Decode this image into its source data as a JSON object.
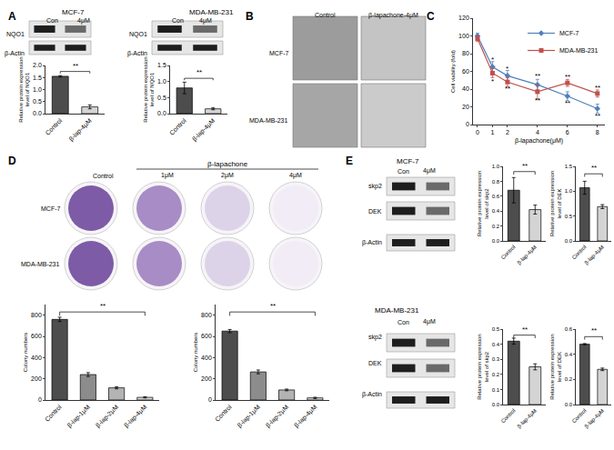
{
  "panel_labels": [
    "A",
    "B",
    "C",
    "D",
    "E"
  ],
  "blots": [
    {
      "title": "MCF-7",
      "lanes": [
        "Con",
        "4μM"
      ],
      "rows": [
        "NQO1",
        "β-Actin"
      ]
    },
    {
      "title": "MDA-MB-231",
      "lanes": [
        "Con",
        "4μM"
      ],
      "rows": [
        "NQO1",
        "β-Actin"
      ]
    },
    {
      "title": "MCF-7",
      "lanes": [
        "Con",
        "4μM"
      ],
      "rows": [
        "skp2",
        "DEK",
        "β-Actin"
      ]
    },
    {
      "title": "MDA-MB-231",
      "lanes": [
        "Con",
        "4μM"
      ],
      "rows": [
        "skp2",
        "DEK",
        "β-Actin"
      ]
    }
  ],
  "micrographs": {
    "columns": [
      "Control",
      "β-lapachone-4μM"
    ],
    "rows": [
      "MCF-7",
      "MDA-MB-231"
    ]
  },
  "colonies": {
    "group_label": "β-lapachone",
    "columns": [
      "Control",
      "1μM",
      "2μM",
      "4μM"
    ],
    "rows": [
      "MCF-7",
      "MDA-MB-231"
    ]
  },
  "chart_data": [
    {
      "type": "bar",
      "y_label": [
        "Relative protein expression",
        "level of NQO1"
      ],
      "categories": [
        "Control",
        "β-lap-4μM"
      ],
      "values": [
        1.55,
        0.28
      ],
      "errors": [
        0.03,
        0.08
      ],
      "colors": [
        "#4d4d4d",
        "#d4d4d4"
      ],
      "ylim": [
        0,
        2.0
      ],
      "yticks": [
        {
          "value": 0,
          "label": "0.0"
        },
        0.5,
        {
          "value": 1,
          "label": "1.0"
        },
        1.5,
        {
          "value": 2,
          "label": "2.0"
        }
      ],
      "annotations": [
        {
          "text": "**",
          "from": "Control",
          "to": "β-lap-4μM",
          "y": 1.75
        }
      ]
    },
    {
      "type": "bar",
      "y_label": [
        "Relative protein expression",
        "level of NQO1"
      ],
      "categories": [
        "Control",
        "β-lap-4μM"
      ],
      "values": [
        0.8,
        0.15
      ],
      "errors": [
        0.18,
        0.03
      ],
      "colors": [
        "#4d4d4d",
        "#d4d4d4"
      ],
      "ylim": [
        0,
        1.5
      ],
      "yticks": [
        {
          "value": 0,
          "label": "0.0"
        },
        0.5,
        {
          "value": 1,
          "label": "1.0"
        },
        1.5
      ],
      "annotations": [
        {
          "text": "**",
          "from": "Control",
          "to": "β-lap-4μM",
          "y": 1.1
        }
      ]
    },
    {
      "type": "line",
      "x_label": "β-lapachone(μM)",
      "y_label": "Cell viability (fold)",
      "x": [
        0,
        1,
        2,
        4,
        6,
        8
      ],
      "series": [
        {
          "name": "MCF-7",
          "color": "#4f81bd",
          "marker": "diamond",
          "values": [
            100,
            65,
            55,
            45,
            32,
            18
          ],
          "errors": [
            3,
            6,
            6,
            6,
            5,
            5
          ]
        },
        {
          "name": "MDA-MB-231",
          "color": "#c0504d",
          "marker": "square",
          "values": [
            97,
            58,
            48,
            37,
            47,
            35
          ],
          "errors": [
            3,
            5,
            5,
            8,
            4,
            4
          ]
        }
      ],
      "xlim": [
        -0.3,
        8.5
      ],
      "xticks": [
        0,
        1,
        2,
        4,
        6,
        8
      ],
      "ylim": [
        0,
        120
      ],
      "yticks": [
        0,
        20,
        40,
        60,
        80,
        100,
        120
      ],
      "legend": "top right",
      "annotations": [
        {
          "x": 1,
          "y": 73,
          "text": "*"
        },
        {
          "x": 1,
          "y": 49,
          "text": "*"
        },
        {
          "x": 2,
          "y": 63,
          "text": "*"
        },
        {
          "x": 2,
          "y": 41,
          "text": "**"
        },
        {
          "x": 4,
          "y": 55,
          "text": "**"
        },
        {
          "x": 4,
          "y": 27,
          "text": "**"
        },
        {
          "x": 6,
          "y": 54,
          "text": "**"
        },
        {
          "x": 6,
          "y": 24,
          "text": "**"
        },
        {
          "x": 8,
          "y": 42,
          "text": "**"
        },
        {
          "x": 8,
          "y": 10,
          "text": "**"
        }
      ]
    },
    {
      "type": "bar",
      "y_label": "Colony numbers",
      "categories": [
        "Control",
        "β-lap-1μM",
        "β-lap-2μM",
        "β-lap-4μM"
      ],
      "values": [
        760,
        240,
        115,
        25
      ],
      "errors": [
        20,
        18,
        10,
        6
      ],
      "colors": [
        "#4d4d4d",
        "#8c8c8c",
        "#b3b3b3",
        "#d9d9d9"
      ],
      "ylim": [
        0,
        900
      ],
      "yticks": [
        0,
        200,
        400,
        600,
        800
      ],
      "annotations": [
        {
          "text": "**",
          "from": "Control",
          "to": "β-lap-4μM",
          "y": 830
        }
      ]
    },
    {
      "type": "bar",
      "y_label": "Colony numbers",
      "categories": [
        "Control",
        "β-lap-1μM",
        "β-lap-2μM",
        "β-lap-4μM"
      ],
      "values": [
        650,
        265,
        95,
        20
      ],
      "errors": [
        15,
        18,
        8,
        6
      ],
      "colors": [
        "#4d4d4d",
        "#8c8c8c",
        "#b3b3b3",
        "#d9d9d9"
      ],
      "ylim": [
        0,
        900
      ],
      "yticks": [
        0,
        200,
        400,
        600,
        800
      ],
      "annotations": [
        {
          "text": "**",
          "from": "Control",
          "to": "β-lap-4μM",
          "y": 830
        }
      ]
    },
    {
      "type": "bar",
      "y_label": [
        "Relative protein expression",
        "level of skp2"
      ],
      "categories": [
        "Control",
        "β-lap-4μM"
      ],
      "values": [
        0.68,
        0.42
      ],
      "errors": [
        0.17,
        0.06
      ],
      "colors": [
        "#4d4d4d",
        "#d4d4d4"
      ],
      "ylim": [
        0,
        1.0
      ],
      "yticks": [
        {
          "value": 0,
          "label": "0.0"
        },
        0.2,
        0.4,
        0.6,
        0.8,
        {
          "value": 1,
          "label": "1.0"
        }
      ],
      "annotations": [
        {
          "text": "**",
          "from": "Control",
          "to": "β-lap-4μM",
          "y": 0.93
        }
      ]
    },
    {
      "type": "bar",
      "y_label": [
        "Relative protein expression",
        "level of DEK"
      ],
      "categories": [
        "Control",
        "β-lap-4μM"
      ],
      "values": [
        1.07,
        0.69
      ],
      "errors": [
        0.13,
        0.04
      ],
      "colors": [
        "#4d4d4d",
        "#d4d4d4"
      ],
      "ylim": [
        0,
        1.5
      ],
      "yticks": [
        {
          "value": 0,
          "label": "0.0"
        },
        0.5,
        {
          "value": 1,
          "label": "1.0"
        },
        1.5
      ],
      "annotations": [
        {
          "text": "**",
          "from": "Control",
          "to": "β-lap-4μM",
          "y": 1.35
        }
      ]
    },
    {
      "type": "bar",
      "y_label": [
        "Relative protein expression",
        "level of skp2"
      ],
      "categories": [
        "Control",
        "β-lap-4μM"
      ],
      "values": [
        0.42,
        0.25
      ],
      "errors": [
        0.02,
        0.02
      ],
      "colors": [
        "#4d4d4d",
        "#d4d4d4"
      ],
      "ylim": [
        0,
        0.5
      ],
      "yticks": [
        {
          "value": 0,
          "label": "0.0"
        },
        0.1,
        0.2,
        0.3,
        0.4,
        0.5
      ],
      "annotations": [
        {
          "text": "**",
          "from": "Control",
          "to": "β-lap-4μM",
          "y": 0.46
        }
      ]
    },
    {
      "type": "bar",
      "y_label": [
        "Relative protein expression",
        "level of DEK"
      ],
      "categories": [
        "Control",
        "β-lap-4μM"
      ],
      "values": [
        0.48,
        0.28
      ],
      "errors": [
        0.005,
        0.01
      ],
      "colors": [
        "#4d4d4d",
        "#d4d4d4"
      ],
      "ylim": [
        0,
        0.6
      ],
      "yticks": [
        {
          "value": 0,
          "label": "0.0"
        },
        0.2,
        0.4,
        0.6
      ],
      "annotations": [
        {
          "text": "**",
          "from": "Control",
          "to": "β-lap-4μM",
          "y": 0.54
        }
      ]
    }
  ]
}
